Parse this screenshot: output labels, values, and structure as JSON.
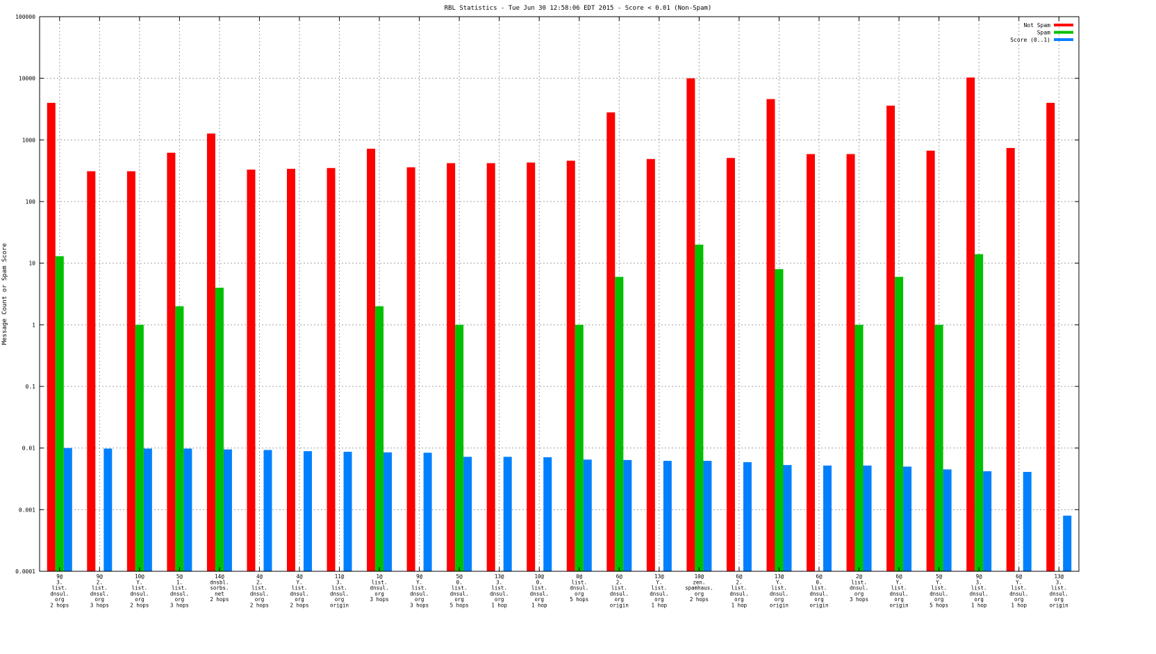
{
  "chart_data": {
    "type": "bar",
    "title": "RBL Statistics - Tue Jun 30 12:58:06 EDT 2015 - Score < 0.01 (Non-Spam)",
    "xlabel": "",
    "ylabel": "Message Count or Spam Score",
    "yscale": "log",
    "ylim": [
      0.0001,
      100000
    ],
    "yticks": [
      "0.0001",
      "0.001",
      "0.01",
      "0.1",
      "1",
      "10",
      "100",
      "1000",
      "10000",
      "100000"
    ],
    "grid": true,
    "legend_position": "top-right",
    "categories": [
      [
        "9@",
        "3.",
        "list.",
        "dnsul.",
        "org",
        "2 hops"
      ],
      [
        "9@",
        "2.",
        "list.",
        "dnsul.",
        "org",
        "3 hops"
      ],
      [
        "10@",
        "Y.",
        "list.",
        "dnsul.",
        "org",
        "2 hops"
      ],
      [
        "5@",
        "1.",
        "list.",
        "dnsul.",
        "org",
        "3 hops"
      ],
      [
        "14@",
        "dnsbl.",
        "sorbs.",
        "net",
        "2 hops"
      ],
      [
        "4@",
        "2.",
        "list.",
        "dnsul.",
        "org",
        "2 hops"
      ],
      [
        "4@",
        "Y.",
        "list.",
        "dnsul.",
        "org",
        "2 hops"
      ],
      [
        "11@",
        "3.",
        "list.",
        "dnsul.",
        "org",
        "origin"
      ],
      [
        "1@",
        "list.",
        "dnsul.",
        "org",
        "3 hops"
      ],
      [
        "9@",
        "Y.",
        "list.",
        "dnsul.",
        "org",
        "3 hops"
      ],
      [
        "5@",
        "0.",
        "list.",
        "dnsul.",
        "org",
        "5 hops"
      ],
      [
        "13@",
        "3.",
        "list.",
        "dnsul.",
        "org",
        "1 hop"
      ],
      [
        "10@",
        "0.",
        "list.",
        "dnsul.",
        "org",
        "1 hop"
      ],
      [
        "0@",
        "list.",
        "dnsul.",
        "org",
        "5 hops"
      ],
      [
        "6@",
        "2.",
        "list.",
        "dnsul.",
        "org",
        "origin"
      ],
      [
        "13@",
        "Y.",
        "list.",
        "dnsul.",
        "org",
        "1 hop"
      ],
      [
        "10@",
        "zen.",
        "spamhaus.",
        "org",
        "2 hops"
      ],
      [
        "6@",
        "2.",
        "list.",
        "dnsul.",
        "org",
        "1 hop"
      ],
      [
        "13@",
        "Y.",
        "list.",
        "dnsul.",
        "org",
        "origin"
      ],
      [
        "6@",
        "0.",
        "list.",
        "dnsul.",
        "org",
        "origin"
      ],
      [
        "2@",
        "list.",
        "dnsul.",
        "org",
        "3 hops"
      ],
      [
        "6@",
        "Y.",
        "list.",
        "dnsul.",
        "org",
        "origin"
      ],
      [
        "5@",
        "Y.",
        "list.",
        "dnsul.",
        "org",
        "5 hops"
      ],
      [
        "9@",
        "3.",
        "list.",
        "dnsul.",
        "org",
        "1 hop"
      ],
      [
        "6@",
        "Y.",
        "list.",
        "dnsul.",
        "org",
        "1 hop"
      ],
      [
        "13@",
        "3.",
        "list.",
        "dnsul.",
        "org",
        "origin"
      ]
    ],
    "series": [
      {
        "name": "Not Spam",
        "color": "#ff0000",
        "values": [
          4000,
          310,
          310,
          620,
          1270,
          330,
          340,
          350,
          720,
          360,
          420,
          420,
          430,
          460,
          2800,
          490,
          10000,
          510,
          4600,
          590,
          590,
          3600,
          670,
          10300,
          740,
          4000
        ]
      },
      {
        "name": "Spam",
        "color": "#00c000",
        "values": [
          13,
          null,
          1,
          2,
          null,
          null,
          null,
          null,
          2,
          null,
          1,
          null,
          null,
          1,
          6,
          null,
          20,
          null,
          8,
          null,
          1,
          6,
          1,
          14,
          null,
          null
        ],
        "extra": {
          "4": 4
        }
      },
      {
        "name": "Score (0..1)",
        "color": "#0080ff",
        "values": [
          0.01,
          0.0098,
          0.0098,
          0.0098,
          0.0095,
          0.0093,
          0.0089,
          0.0087,
          0.0085,
          0.0084,
          0.0072,
          0.0072,
          0.0071,
          0.0065,
          0.0064,
          0.0062,
          0.0062,
          0.0059,
          0.0053,
          0.0052,
          0.0052,
          0.005,
          0.0045,
          0.0042,
          0.0041,
          0.0008
        ]
      }
    ]
  }
}
